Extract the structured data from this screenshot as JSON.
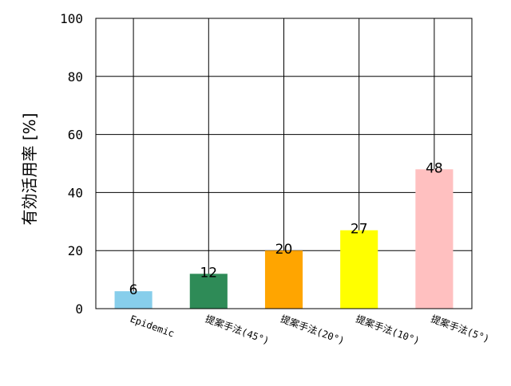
{
  "chart_data": {
    "type": "bar",
    "title": "",
    "xlabel": "",
    "ylabel": "有効活用率 [%]",
    "categories": [
      "Epidemic",
      "提案手法(45°)",
      "提案手法(20°)",
      "提案手法(10°)",
      "提案手法(5°)"
    ],
    "values": [
      6,
      12,
      20,
      27,
      48
    ],
    "bar_colors": [
      "#87ceeb",
      "#2e8b57",
      "#ffa500",
      "#ffff00",
      "#ffc0c0"
    ],
    "ylim": [
      0,
      100
    ],
    "yticks": [
      0,
      20,
      40,
      60,
      80,
      100
    ],
    "grid": true,
    "legend": "none"
  }
}
